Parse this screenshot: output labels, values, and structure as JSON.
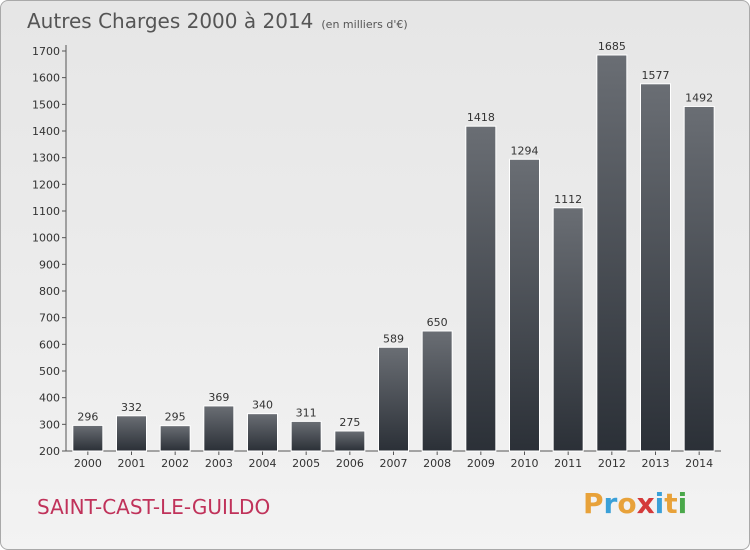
{
  "header": {
    "title": "Autres Charges 2000 à 2014",
    "subtitle": "(en milliers d'€)"
  },
  "footer": {
    "town": "SAINT-CAST-LE-GUILDO"
  },
  "logo": {
    "letters": [
      "P",
      "r",
      "o",
      "x",
      "i",
      "t",
      "i"
    ],
    "colors": [
      "#e8a23a",
      "#3aa0d8",
      "#e8a23a",
      "#d43a3a",
      "#3aa0d8",
      "#e8a23a",
      "#4aa84a"
    ]
  },
  "chart_data": {
    "type": "bar",
    "title": "Autres Charges 2000 à 2014",
    "subtitle": "(en milliers d'€)",
    "categories": [
      "2000",
      "2001",
      "2002",
      "2003",
      "2004",
      "2005",
      "2006",
      "2007",
      "2008",
      "2009",
      "2010",
      "2011",
      "2012",
      "2013",
      "2014"
    ],
    "values": [
      296,
      332,
      295,
      369,
      340,
      311,
      275,
      589,
      650,
      1418,
      1294,
      1112,
      1685,
      1577,
      1492
    ],
    "ylim": [
      200,
      1700
    ],
    "yticks": [
      200,
      300,
      400,
      500,
      600,
      700,
      800,
      900,
      1000,
      1100,
      1200,
      1300,
      1400,
      1500,
      1600,
      1700
    ],
    "grid": false,
    "bar_color_top": "#6a6e74",
    "bar_color_bottom": "#2b3037"
  }
}
